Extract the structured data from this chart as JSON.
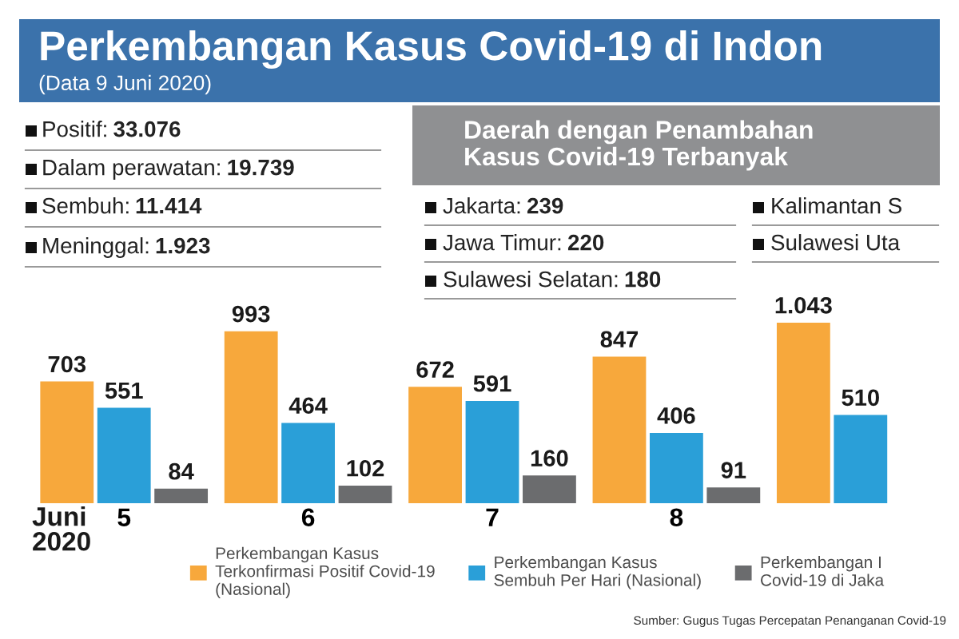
{
  "chart_data": {
    "type": "bar",
    "title": "Perkembangan Kasus Covid-19 di Indon",
    "subtitle": "(Data 9 Juni 2020)",
    "xlabel": "Juni\n2020",
    "categories": [
      "5",
      "6",
      "7",
      "8",
      null
    ],
    "series": [
      {
        "name": "Perkembangan Kasus\nTerkonfirmasi Positif Covid-19\n(Nasional)",
        "color": "#f7a83c",
        "values": [
          703,
          993,
          672,
          847,
          1043
        ],
        "value_labels": [
          "703",
          "993",
          "672",
          "847",
          "1.043"
        ]
      },
      {
        "name": "Perkembangan Kasus\nSembuh Per Hari (Nasional)",
        "color": "#2a9fd8",
        "values": [
          551,
          464,
          591,
          406,
          510
        ],
        "value_labels": [
          "551",
          "464",
          "591",
          "406",
          "510"
        ]
      },
      {
        "name": "Perkembangan I\nCovid-19 di Jaka",
        "color": "#6b6c6e",
        "values": [
          84,
          102,
          160,
          91,
          null
        ],
        "value_labels": [
          "84",
          "102",
          "160",
          "91",
          null
        ]
      }
    ],
    "tick_labels": "x",
    "legend": "bottom",
    "annotations": [
      "Positif: 33.076",
      "Dalam perawatan: 19.739",
      "Sembuh: 11.414",
      "Meninggal: 1.923",
      "Daerah dengan Penambahan\nKasus Covid-19 Terbanyak",
      "Jakarta: 239",
      "Jawa Timur: 220",
      "Sulawesi Selatan: 180",
      "Kalimantan S",
      "Sulawesi Uta",
      "Sumber: Gugus Tugas Percepatan Penanganan Covid-19"
    ]
  }
}
